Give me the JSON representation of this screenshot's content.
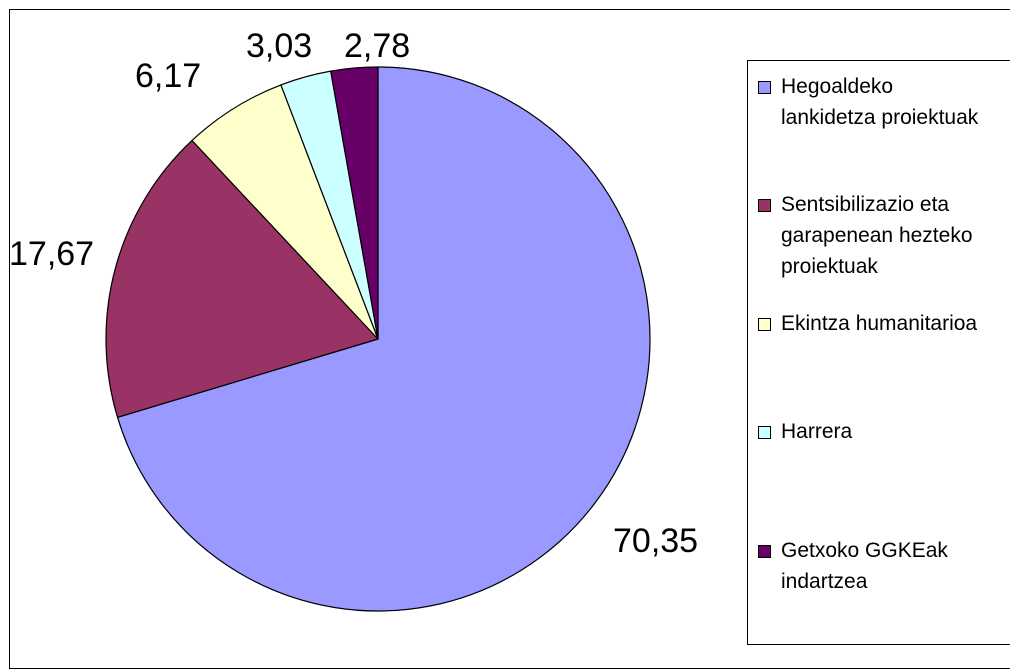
{
  "chart_data": {
    "type": "pie",
    "slices": [
      {
        "label": "Hegoaldeko\nlankidetza proiektuak",
        "value": 70.35,
        "value_label": "70,35",
        "color": "#9999ff"
      },
      {
        "label": "Sentsibilizazio eta\ngarapenean hezteko\nproiektuak",
        "value": 17.67,
        "value_label": "17,67",
        "color": "#993366"
      },
      {
        "label": "Ekintza humanitarioa",
        "value": 6.17,
        "value_label": "6,17",
        "color": "#ffffcc"
      },
      {
        "label": "Harrera",
        "value": 3.03,
        "value_label": "3,03",
        "color": "#ccffff"
      },
      {
        "label": "Getxoko GGKEak\nindartzea",
        "value": 2.78,
        "value_label": "2,78",
        "color": "#660066"
      }
    ],
    "start_angle": "12 o'clock",
    "direction": "clockwise",
    "legend_position": "right"
  }
}
